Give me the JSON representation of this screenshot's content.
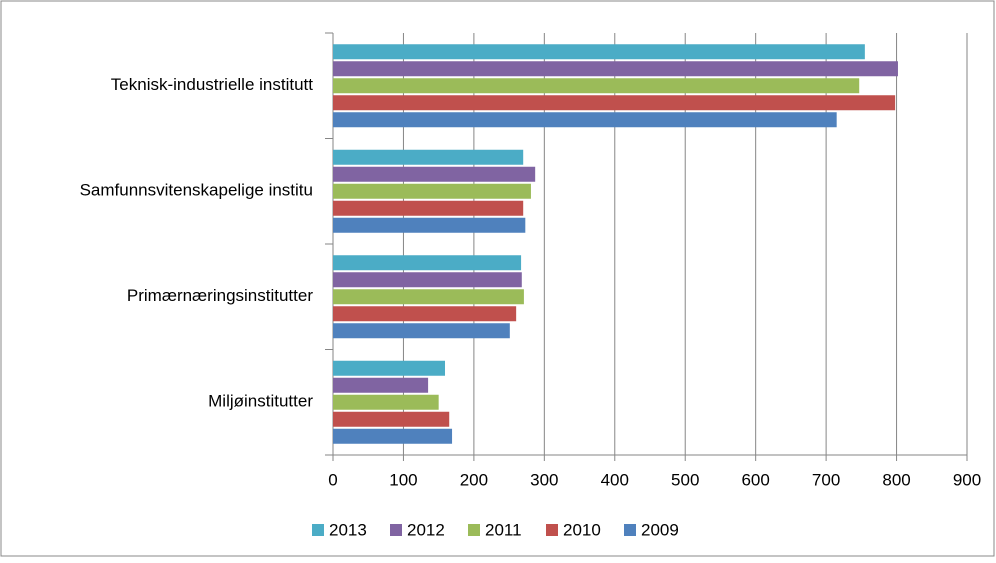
{
  "chart_data": {
    "type": "hbar",
    "categories": [
      "Teknisk-industrielle institutt",
      "Samfunnsvitenskapelige institu",
      "Primærnæringsinstitutter",
      "Miljøinstitutter"
    ],
    "series": [
      {
        "name": "2013",
        "color": "#4bacc6",
        "values": [
          755,
          270,
          267,
          159
        ]
      },
      {
        "name": "2012",
        "color": "#8064a2",
        "values": [
          802,
          287,
          268,
          135
        ]
      },
      {
        "name": "2011",
        "color": "#9bbb59",
        "values": [
          747,
          281,
          271,
          150
        ]
      },
      {
        "name": "2010",
        "color": "#c0504d",
        "values": [
          798,
          270,
          260,
          165
        ]
      },
      {
        "name": "2009",
        "color": "#4f81bd",
        "values": [
          715,
          273,
          251,
          169
        ]
      }
    ],
    "xlim": [
      0,
      900
    ],
    "xticks": [
      0,
      100,
      200,
      300,
      400,
      500,
      600,
      700,
      800,
      900
    ],
    "grid": true,
    "legend": "bottom"
  }
}
